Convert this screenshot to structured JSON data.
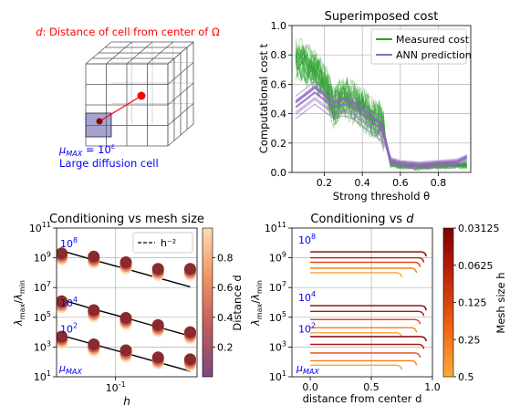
{
  "colors": {
    "measured": "#2ca02c",
    "ann": "#9467bd",
    "annotation_red": "#ff0000",
    "annotation_blue": "#0000ff"
  },
  "diagram": {
    "title_prefix": "d",
    "title_rest": ": Distance of cell from center of Ω",
    "mu_label": "μ",
    "mu_sub": "MAX",
    "mu_eq": " = 10",
    "mu_exp": "ε",
    "cell_label": "Large diffusion cell"
  },
  "chart_data": [
    {
      "id": "superimposed",
      "type": "line",
      "title": "Superimposed cost",
      "xlabel": "Strong threshold θ",
      "ylabel": "Computational cost t",
      "xlim": [
        0.03,
        0.97
      ],
      "ylim": [
        0.0,
        1.0
      ],
      "xticks": [
        "0.2",
        "0.4",
        "0.6",
        "0.8"
      ],
      "yticks": [
        "0.0",
        "0.2",
        "0.4",
        "0.6",
        "0.8",
        "1.0"
      ],
      "grid": true,
      "legend_position": "upper right",
      "series": [
        {
          "name": "Measured cost",
          "x": [
            0.05,
            0.1,
            0.15,
            0.2,
            0.25,
            0.3,
            0.35,
            0.4,
            0.45,
            0.5,
            0.55,
            0.6,
            0.7,
            0.8,
            0.9,
            0.95
          ],
          "y": [
            0.78,
            0.75,
            0.7,
            0.62,
            0.45,
            0.52,
            0.48,
            0.45,
            0.38,
            0.35,
            0.06,
            0.05,
            0.04,
            0.05,
            0.05,
            0.05
          ]
        },
        {
          "name": "ANN prediction",
          "x": [
            0.05,
            0.1,
            0.15,
            0.2,
            0.25,
            0.3,
            0.35,
            0.4,
            0.45,
            0.5,
            0.55,
            0.6,
            0.7,
            0.8,
            0.9,
            0.95
          ],
          "y": [
            0.45,
            0.5,
            0.55,
            0.5,
            0.45,
            0.47,
            0.45,
            0.4,
            0.35,
            0.3,
            0.08,
            0.06,
            0.05,
            0.06,
            0.07,
            0.1
          ]
        }
      ]
    },
    {
      "id": "cond_mesh",
      "type": "scatter",
      "title": "Conditioning vs mesh size",
      "xlabel": "h",
      "ylabel": "λmax/λmin",
      "xscale": "log",
      "yscale": "log",
      "xlim": [
        0.028,
        0.58
      ],
      "ylim": [
        10,
        100000000000
      ],
      "xtick_labels": [
        "10⁻¹"
      ],
      "ytick_labels": [
        "10¹",
        "10³",
        "10⁵",
        "10⁷",
        "10⁹",
        "10¹¹"
      ],
      "grid": true,
      "legend": [
        {
          "name": "h⁻²",
          "style": "dashed"
        }
      ],
      "series_labels": [
        "10⁸",
        "10⁴",
        "10²",
        "μMAX"
      ],
      "colorbar": {
        "label": "Distance d",
        "ticks": [
          "0.2",
          "0.4",
          "0.6",
          "0.8"
        ],
        "range": [
          0.0,
          1.0
        ]
      },
      "h_values": [
        0.03125,
        0.0625,
        0.125,
        0.25,
        0.5
      ],
      "series": [
        {
          "mu": "10⁸",
          "values": [
            2000000000,
            1200000000,
            500000000,
            180000000,
            180000000
          ],
          "fit": [
            3000000000,
            700000000,
            180000000,
            45000000
          ]
        },
        {
          "mu": "10⁴",
          "values": [
            1200000,
            300000,
            90000,
            30000,
            10000
          ],
          "fit": [
            1500000,
            350000,
            90000,
            22000
          ]
        },
        {
          "mu": "10²",
          "values": [
            5000,
            1500,
            600,
            200,
            150
          ],
          "fit": [
            6000,
            1500,
            380,
            95
          ]
        }
      ]
    },
    {
      "id": "cond_d",
      "type": "line",
      "title": "Conditioning vs d",
      "xlabel": "distance from center d",
      "ylabel": "λmax/λmin",
      "yscale": "log",
      "xlim": [
        -0.15,
        1.0
      ],
      "ylim": [
        10,
        100000000000
      ],
      "xticks": [
        "0.0",
        "0.5",
        "1.0"
      ],
      "ytick_labels": [
        "10¹",
        "10³",
        "10⁵",
        "10⁷",
        "10⁹",
        "10¹¹"
      ],
      "grid": true,
      "series_labels": [
        "10⁸",
        "10⁴",
        "10²",
        "μMAX"
      ],
      "colorbar": {
        "label": "Mesh size h",
        "ticks": [
          "0.03125",
          "0.0625",
          "0.125",
          "0.25",
          "0.5"
        ]
      },
      "series": [
        {
          "mu": "10⁸",
          "h": "0.03125",
          "value": 2500000000,
          "x_end": 0.95
        },
        {
          "mu": "10⁸",
          "h": "0.0625",
          "value": 1000000000,
          "x_end": 0.93
        },
        {
          "mu": "10⁸",
          "h": "0.125",
          "value": 500000000,
          "x_end": 0.9
        },
        {
          "mu": "10⁸",
          "h": "0.25",
          "value": 200000000,
          "x_end": 0.87
        },
        {
          "mu": "10⁸",
          "h": "0.5",
          "value": 100000000,
          "x_end": 0.75
        },
        {
          "mu": "10⁴",
          "h": "0.03125",
          "value": 600000,
          "x_end": 0.95
        },
        {
          "mu": "10⁴",
          "h": "0.0625",
          "value": 250000,
          "x_end": 0.93
        },
        {
          "mu": "10⁴",
          "h": "0.125",
          "value": 70000,
          "x_end": 0.9
        },
        {
          "mu": "10⁴",
          "h": "0.25",
          "value": 20000,
          "x_end": 0.87
        },
        {
          "mu": "10⁴",
          "h": "0.5",
          "value": 9000,
          "x_end": 0.75
        },
        {
          "mu": "10²",
          "h": "0.03125",
          "value": 5000,
          "x_end": 0.95
        },
        {
          "mu": "10²",
          "h": "0.0625",
          "value": 1500,
          "x_end": 0.93
        },
        {
          "mu": "10²",
          "h": "0.125",
          "value": 400,
          "x_end": 0.9
        },
        {
          "mu": "10²",
          "h": "0.25",
          "value": 120,
          "x_end": 0.87
        },
        {
          "mu": "10²",
          "h": "0.5",
          "value": 60,
          "x_end": 0.75
        }
      ]
    }
  ]
}
